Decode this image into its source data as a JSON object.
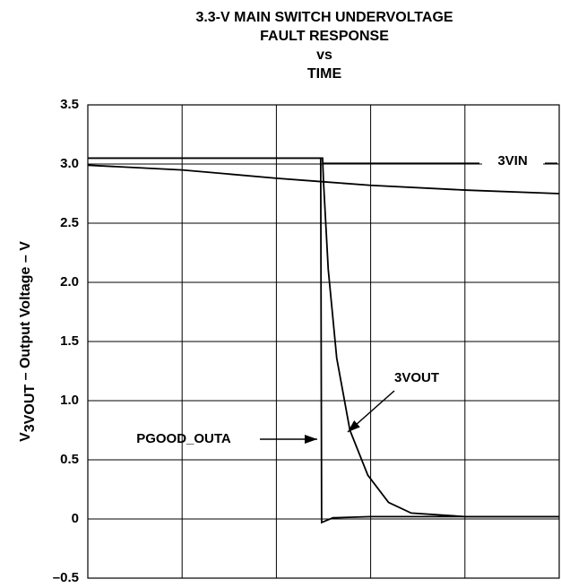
{
  "chart_data": {
    "type": "line",
    "title": [
      "3.3-V MAIN SWITCH UNDERVOLTAGE",
      "FAULT RESPONSE",
      "vs",
      "TIME"
    ],
    "ylabel": {
      "main": "V",
      "sub": "3VOUT",
      "rest": " – Output Voltage – V"
    },
    "xlim": [
      0,
      5
    ],
    "xticks": [
      0,
      1,
      2,
      3,
      4,
      5
    ],
    "ylim": [
      -0.5,
      3.5
    ],
    "yticks": [
      3.5,
      {
        "value": 3,
        "label": "3.0"
      },
      2.5,
      {
        "value": 2,
        "label": "2.0"
      },
      1.5,
      {
        "value": 1,
        "label": "1.0"
      },
      0.5,
      0,
      {
        "value": -0.5,
        "label": "–0.5"
      }
    ],
    "grid": true,
    "series": [
      {
        "name": "3VIN",
        "color": "#000000",
        "x": [
          0,
          1,
          2,
          2.5,
          3,
          4,
          5
        ],
        "values": [
          2.99,
          2.95,
          2.88,
          2.85,
          2.82,
          2.78,
          2.75
        ]
      },
      {
        "name": "3VOUT",
        "color": "#000000",
        "x": [
          0,
          1,
          2,
          2.49,
          2.5,
          2.55,
          2.64,
          2.78,
          2.97,
          3.19,
          3.43,
          4,
          5
        ],
        "values": [
          3.05,
          3.05,
          3.05,
          3.05,
          2.85,
          2.11,
          1.36,
          0.75,
          0.37,
          0.14,
          0.05,
          0.02,
          0.02
        ]
      },
      {
        "name": "PGOOD_OUTA",
        "color": "#000000",
        "x": [
          0,
          1,
          2,
          2.47,
          2.48,
          2.6,
          3,
          5
        ],
        "values": [
          3.05,
          3.05,
          3.05,
          3.05,
          -0.03,
          0.01,
          0.02,
          0.02
        ]
      }
    ]
  }
}
